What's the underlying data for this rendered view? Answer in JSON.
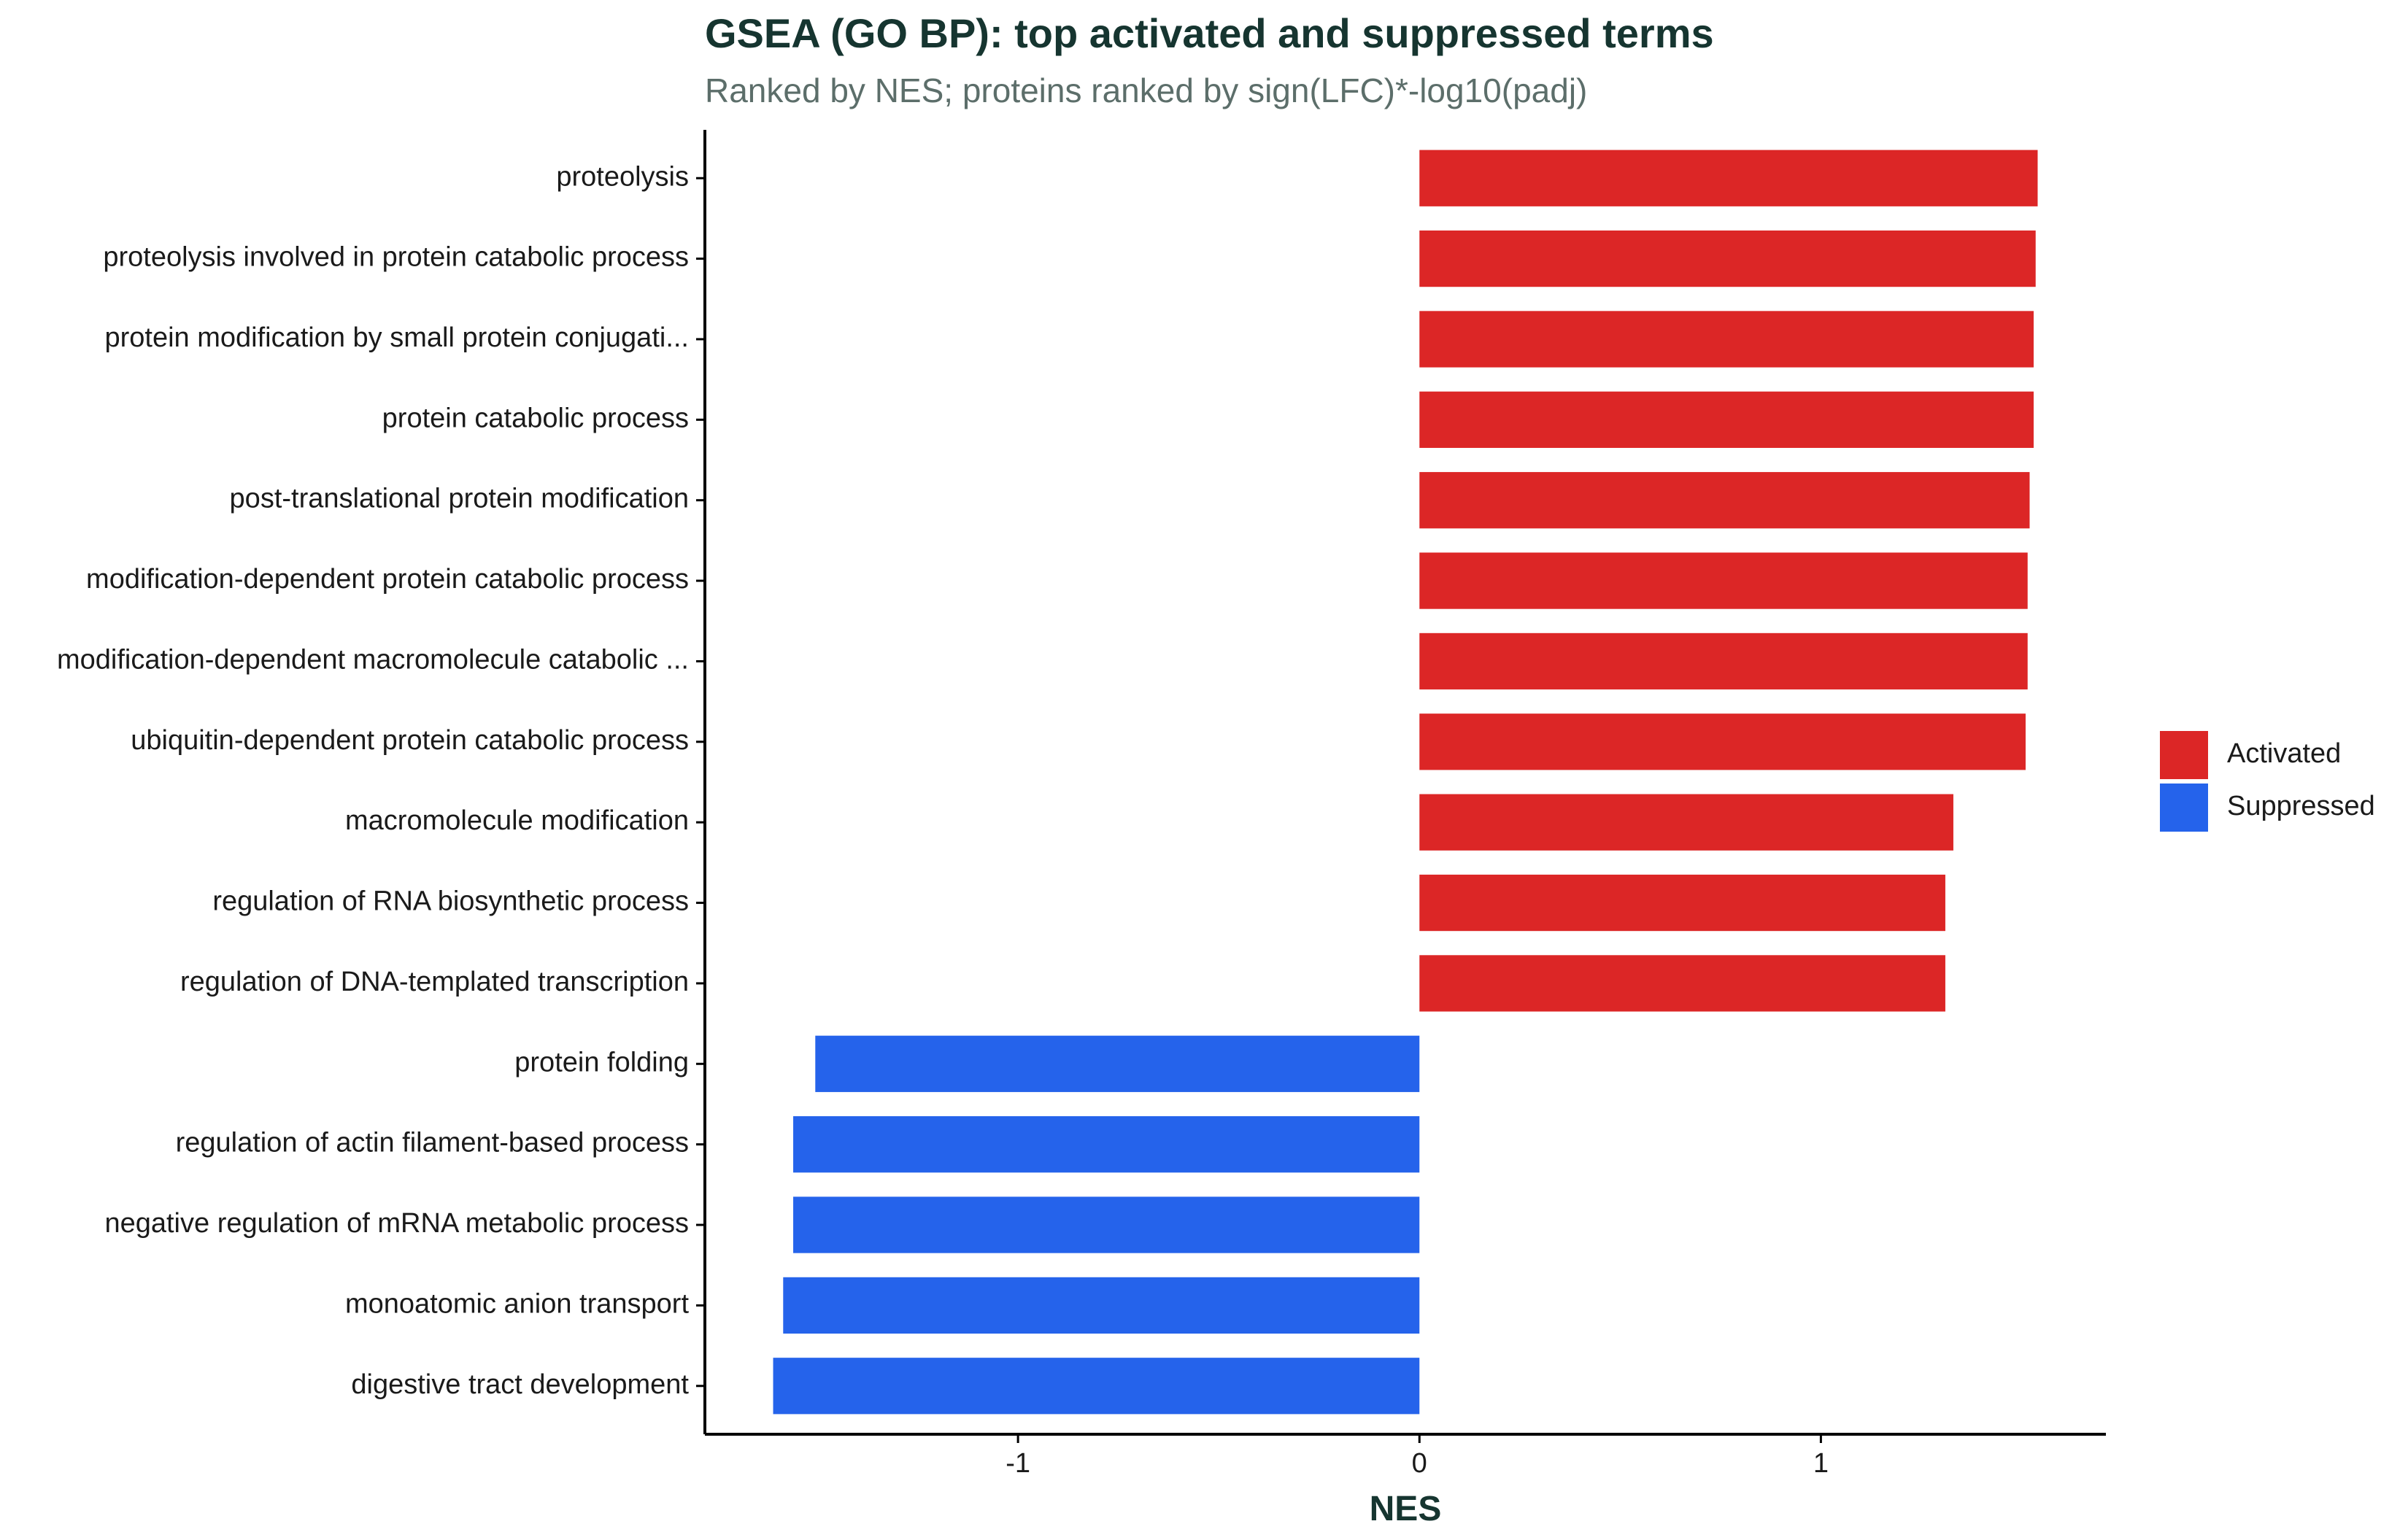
{
  "chart_data": {
    "type": "bar",
    "orientation": "horizontal",
    "title": "GSEA (GO BP): top activated and suppressed terms",
    "subtitle": "Ranked by NES; proteins ranked by sign(LFC)*-log10(padj)",
    "xlabel": "NES",
    "ylabel": "",
    "xlim": [
      -1.78,
      1.71
    ],
    "xticks": [
      -1,
      0,
      1
    ],
    "xtick_labels": [
      "-1",
      "0",
      "1"
    ],
    "grid": false,
    "legend_position": "right",
    "categories": [
      "proteolysis",
      "proteolysis involved in protein catabolic process",
      "protein modification by small protein conjugati...",
      "protein catabolic process",
      "post-translational protein modification",
      "modification-dependent protein catabolic process",
      "modification-dependent macromolecule catabolic ...",
      "ubiquitin-dependent protein catabolic process",
      "macromolecule modification",
      "regulation of RNA biosynthetic process",
      "regulation of DNA-templated transcription",
      "protein folding",
      "regulation of actin filament-based process",
      "negative regulation of mRNA metabolic process",
      "monoatomic anion transport",
      "digestive tract development"
    ],
    "values": [
      1.54,
      1.535,
      1.53,
      1.53,
      1.52,
      1.515,
      1.515,
      1.51,
      1.33,
      1.31,
      1.31,
      -1.505,
      -1.56,
      -1.56,
      -1.585,
      -1.61
    ],
    "groups": [
      "Activated",
      "Activated",
      "Activated",
      "Activated",
      "Activated",
      "Activated",
      "Activated",
      "Activated",
      "Activated",
      "Activated",
      "Activated",
      "Suppressed",
      "Suppressed",
      "Suppressed",
      "Suppressed",
      "Suppressed"
    ],
    "legend": [
      {
        "name": "Activated",
        "color": "#dc2626"
      },
      {
        "name": "Suppressed",
        "color": "#2563eb"
      }
    ]
  }
}
